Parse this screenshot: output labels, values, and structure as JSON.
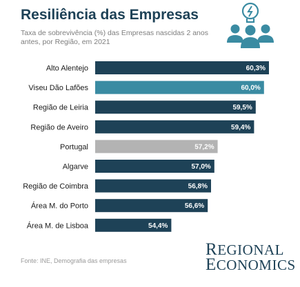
{
  "header": {
    "title": "Resiliência das Empresas",
    "subtitle": "Taxa de sobrevivência (%) das Empresas nascidas 2 anos antes, por Região, em 2021"
  },
  "icons": {
    "header_icon": "lightbulb-people-icon"
  },
  "colors": {
    "primary_bar": "#1e4257",
    "highlight_bar": "#3a8ba2",
    "reference_bar": "#b3b3b3",
    "title": "#1e4257"
  },
  "chart_data": {
    "type": "bar",
    "orientation": "horizontal",
    "categories": [
      "Alto Alentejo",
      "Viseu Dão Lafões",
      "Região de Leiria",
      "Região de Aveiro",
      "Portugal",
      "Algarve",
      "Região de Coimbra",
      "Área M. do Porto",
      "Área M. de Lisboa"
    ],
    "values": [
      60.3,
      60.0,
      59.5,
      59.4,
      57.2,
      57.0,
      56.8,
      56.6,
      54.4
    ],
    "value_labels": [
      "60,3%",
      "60,0%",
      "59,5%",
      "59,4%",
      "57,2%",
      "57,0%",
      "56,8%",
      "56,6%",
      "54,4%"
    ],
    "bar_colors": [
      "primary_bar",
      "highlight_bar",
      "primary_bar",
      "primary_bar",
      "reference_bar",
      "primary_bar",
      "primary_bar",
      "primary_bar",
      "primary_bar"
    ],
    "title": "Resiliência das Empresas",
    "xlabel": "",
    "ylabel": "",
    "grid": false,
    "legend": "none"
  },
  "footer": {
    "source": "Fonte: INE, Demografia das empresas",
    "brand_line1_initial": "R",
    "brand_line1_rest": "EGIONAL",
    "brand_line2_initial": "E",
    "brand_line2_rest": "CONOMICS"
  }
}
